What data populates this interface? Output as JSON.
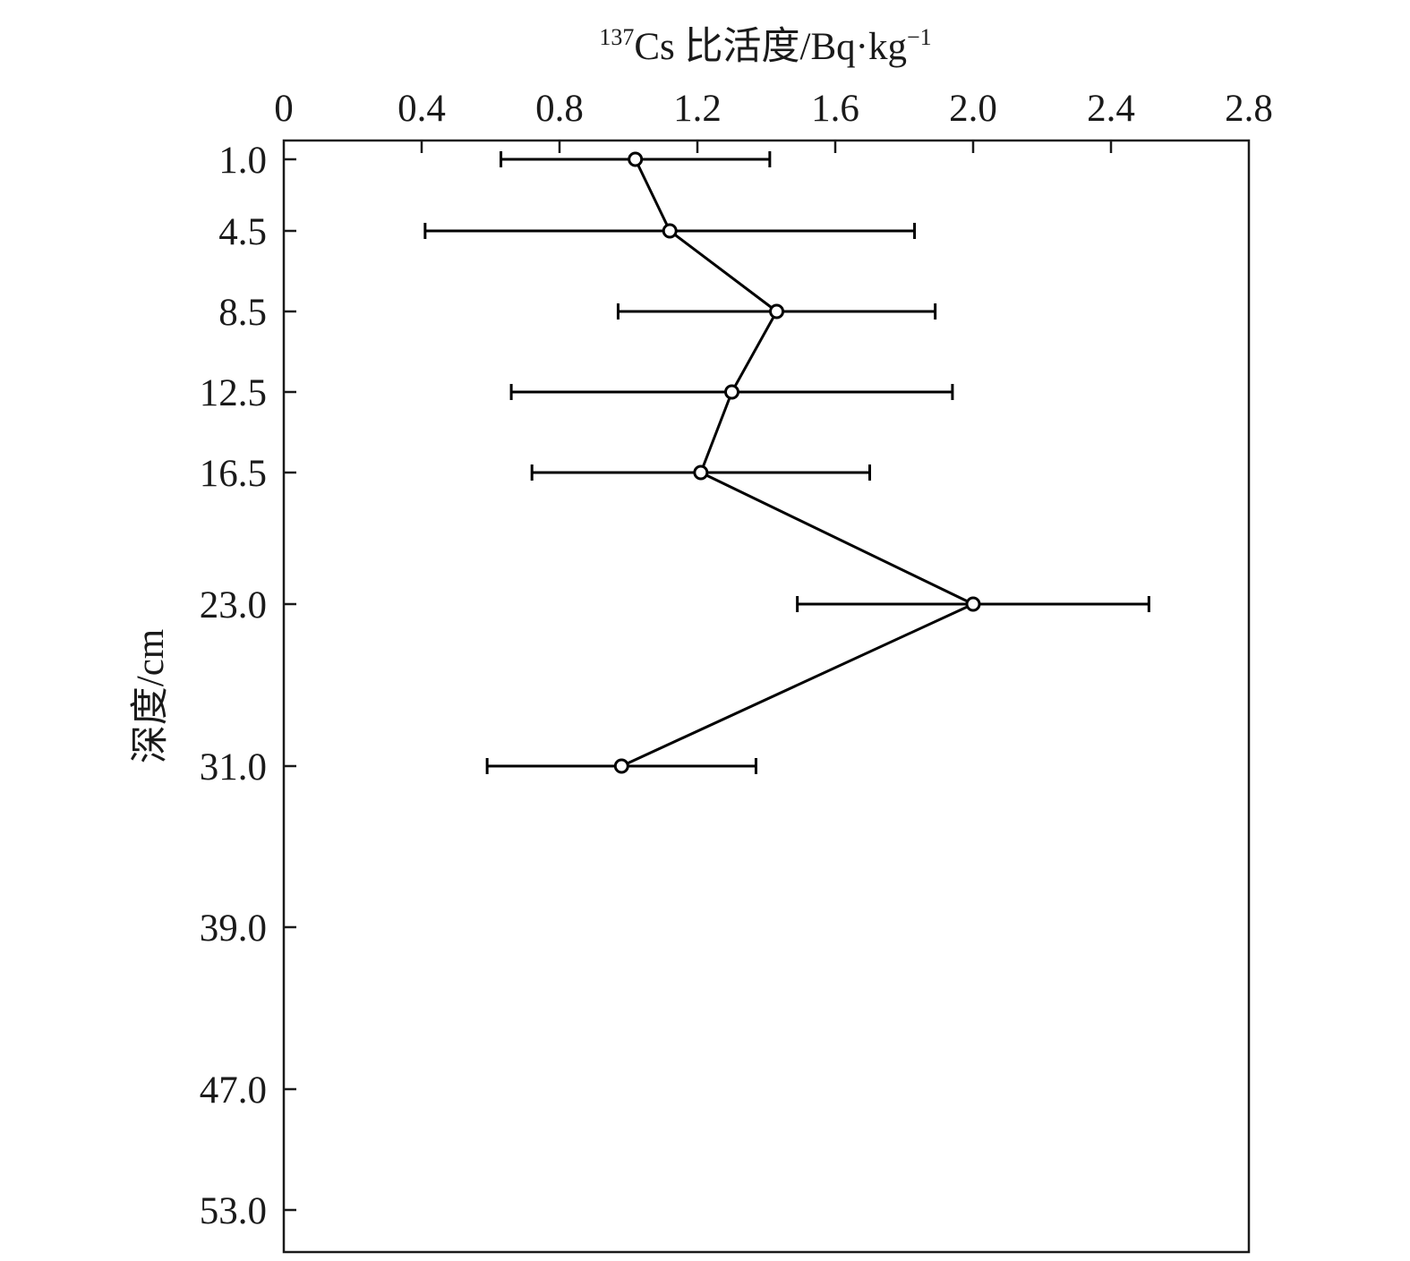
{
  "chart_data": {
    "type": "scatter",
    "title": "",
    "xlabel": {
      "superscript": "137",
      "text": "Cs 比活度/Bq·kg",
      "unit_exponent": "−1"
    },
    "ylabel": "深度/cm",
    "x_axis_position": "top",
    "y_axis_inverted": true,
    "xlim": [
      0,
      2.8
    ],
    "ylim": [
      53.0,
      1.0
    ],
    "x_ticks": [
      "0",
      "0.4",
      "0.8",
      "1.2",
      "1.6",
      "2.0",
      "2.4",
      "2.8"
    ],
    "y_ticks": [
      "1.0",
      "4.5",
      "8.5",
      "12.5",
      "16.5",
      "23.0",
      "31.0",
      "39.0",
      "47.0",
      "53.0"
    ],
    "grid": false,
    "legend": "none",
    "series": [
      {
        "points": [
          {
            "depth": 1.0,
            "activity": 1.02,
            "err_low": 0.63,
            "err_high": 1.41
          },
          {
            "depth": 4.5,
            "activity": 1.12,
            "err_low": 0.41,
            "err_high": 1.83
          },
          {
            "depth": 8.5,
            "activity": 1.43,
            "err_low": 0.97,
            "err_high": 1.89
          },
          {
            "depth": 12.5,
            "activity": 1.3,
            "err_low": 0.66,
            "err_high": 1.94
          },
          {
            "depth": 16.5,
            "activity": 1.21,
            "err_low": 0.72,
            "err_high": 1.7
          },
          {
            "depth": 23.0,
            "activity": 2.0,
            "err_low": 1.49,
            "err_high": 2.51
          },
          {
            "depth": 31.0,
            "activity": 0.98,
            "err_low": 0.59,
            "err_high": 1.37
          }
        ]
      }
    ]
  }
}
